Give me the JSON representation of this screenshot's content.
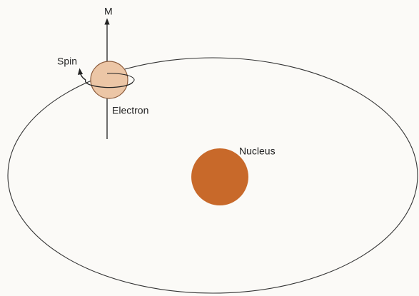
{
  "nodes": [
    {
      "label": "M"
    },
    {
      "label": "Spin"
    },
    {
      "label": "Electron"
    },
    {
      "label": "Nucleus"
    }
  ]
}
